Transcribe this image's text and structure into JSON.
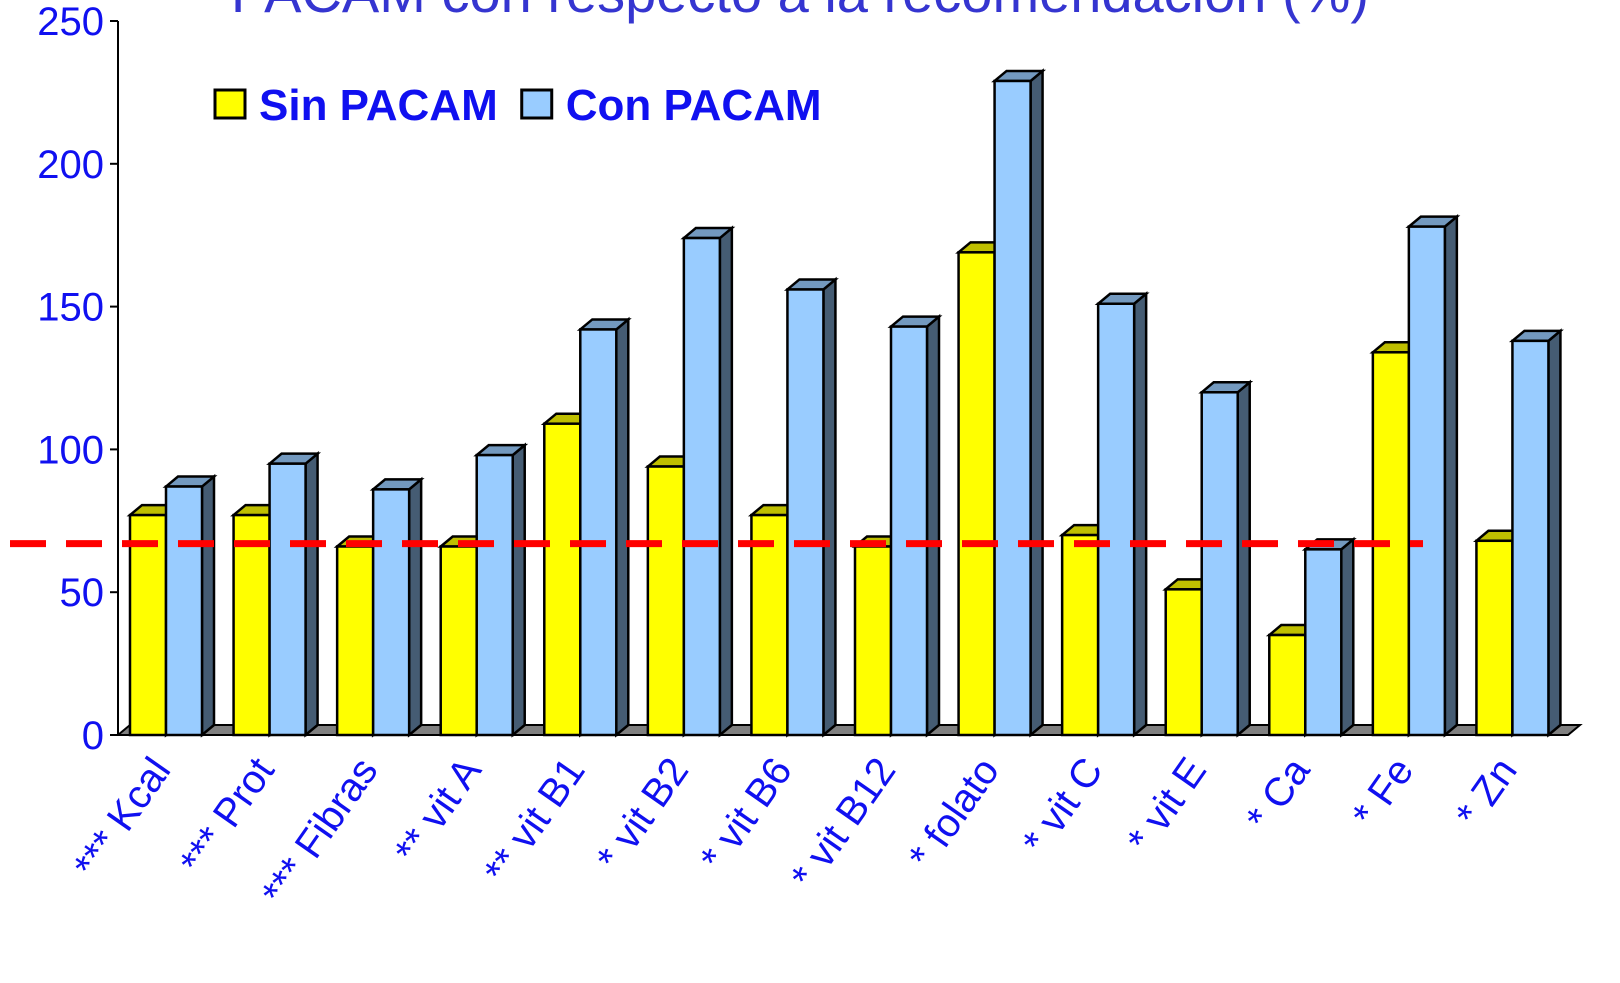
{
  "chart_data": {
    "type": "bar3d",
    "title": "PACAM con respecto a la recomendación (%)",
    "categories": [
      "*** Kcal",
      "*** Prot",
      "*** Fibras",
      "** vit A",
      "** vit B1",
      "* vit B2",
      "* vit B6",
      "* vit B12",
      "* folato",
      "* vit C",
      "* vit E",
      "* Ca",
      "* Fe",
      "* Zn"
    ],
    "series": [
      {
        "name": "Sin PACAM",
        "color": "#ffff00",
        "values": [
          77,
          77,
          66,
          66,
          109,
          94,
          77,
          66,
          169,
          70,
          51,
          35,
          134,
          68
        ]
      },
      {
        "name": "Con PACAM",
        "color": "#99ccff",
        "values": [
          87,
          95,
          86,
          98,
          142,
          174,
          156,
          143,
          229,
          151,
          120,
          65,
          178,
          138
        ]
      }
    ],
    "ylim": [
      0,
      250
    ],
    "yticks": [
      0,
      50,
      100,
      150,
      200,
      250
    ],
    "reference_line": {
      "value": 67,
      "color": "#ff0000"
    },
    "legend": "top"
  }
}
